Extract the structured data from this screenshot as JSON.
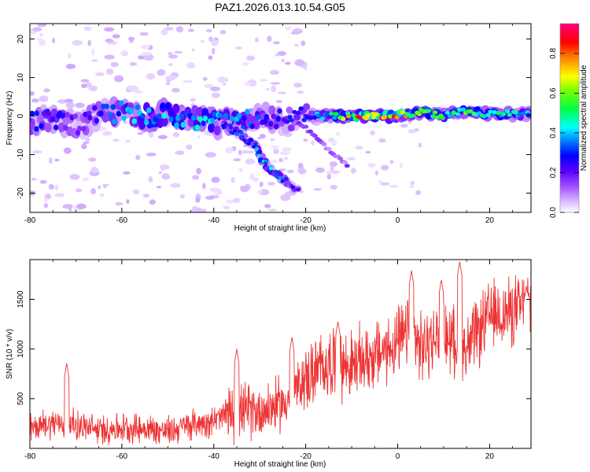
{
  "title": "PAZ1.2026.013.10.54.G05",
  "chart_data": [
    {
      "type": "heatmap",
      "xlabel": "Height of straight line (km)",
      "ylabel": "Frequency (Hz)",
      "xlim": [
        -80,
        29
      ],
      "ylim": [
        -25,
        24
      ],
      "xticks": [
        -80,
        -60,
        -40,
        -20,
        0,
        20
      ],
      "yticks": [
        -20,
        -10,
        0,
        10,
        20
      ],
      "colorbar": {
        "label": "Normalized spectral amplitude",
        "range": [
          0,
          0.95
        ],
        "ticks": [
          0.0,
          0.2,
          0.4,
          0.6,
          0.8
        ],
        "colormap": [
          "#ffffff",
          "#d9b8ff",
          "#9d4dff",
          "#6000ff",
          "#0000ff",
          "#00ffff",
          "#00ff00",
          "#ffff00",
          "#ff8000",
          "#ff0000",
          "#ff0080"
        ]
      },
      "ridge": [
        {
          "x": -80,
          "f": -1.5,
          "a": 0.25
        },
        {
          "x": -75,
          "f": -1.0,
          "a": 0.3
        },
        {
          "x": -70,
          "f": -2.5,
          "a": 0.2
        },
        {
          "x": -65,
          "f": 0.5,
          "a": 0.25
        },
        {
          "x": -60,
          "f": 1.0,
          "a": 0.4
        },
        {
          "x": -55,
          "f": 0.0,
          "a": 0.42
        },
        {
          "x": -50,
          "f": 0.5,
          "a": 0.4
        },
        {
          "x": -45,
          "f": -0.5,
          "a": 0.4
        },
        {
          "x": -40,
          "f": -2.0,
          "a": 0.42
        },
        {
          "x": -35,
          "f": -1.5,
          "a": 0.4
        },
        {
          "x": -30,
          "f": 0.0,
          "a": 0.3
        },
        {
          "x": -25,
          "f": -1.0,
          "a": 0.25
        },
        {
          "x": -20,
          "f": 0.0,
          "a": 0.3
        },
        {
          "x": -15,
          "f": 0.0,
          "a": 0.45
        },
        {
          "x": -10,
          "f": 0.0,
          "a": 0.7
        },
        {
          "x": -5,
          "f": 0.0,
          "a": 0.92
        },
        {
          "x": 0,
          "f": 0.2,
          "a": 0.75
        },
        {
          "x": 5,
          "f": 1.0,
          "a": 0.55
        },
        {
          "x": 10,
          "f": 0.0,
          "a": 0.5
        },
        {
          "x": 15,
          "f": 1.5,
          "a": 0.55
        },
        {
          "x": 20,
          "f": 0.5,
          "a": 0.5
        },
        {
          "x": 25,
          "f": 0.5,
          "a": 0.45
        },
        {
          "x": 29,
          "f": 0.5,
          "a": 0.4
        }
      ],
      "branch": [
        {
          "x": -38,
          "f": -2.0,
          "a": 0.3
        },
        {
          "x": -34,
          "f": -5.0,
          "a": 0.3
        },
        {
          "x": -31,
          "f": -8.0,
          "a": 0.35
        },
        {
          "x": -29,
          "f": -12.0,
          "a": 0.45
        },
        {
          "x": -27,
          "f": -14.5,
          "a": 0.35
        },
        {
          "x": -24,
          "f": -17.0,
          "a": 0.28
        },
        {
          "x": -22,
          "f": -19.5,
          "a": 0.22
        }
      ]
    },
    {
      "type": "line",
      "xlabel": "Height of straight line (km)",
      "ylabel": "SNR (10 * v/v)",
      "xlim": [
        -80,
        29
      ],
      "ylim": [
        0,
        1900
      ],
      "xticks": [
        -80,
        -60,
        -40,
        -20,
        0,
        20
      ],
      "yticks": [
        500,
        1000,
        1500
      ],
      "series": [
        {
          "name": "SNR",
          "color": "#ee3333",
          "trend": [
            {
              "x": -80,
              "y": 200
            },
            {
              "x": -75,
              "y": 260
            },
            {
              "x": -70,
              "y": 240
            },
            {
              "x": -65,
              "y": 180
            },
            {
              "x": -60,
              "y": 210
            },
            {
              "x": -55,
              "y": 200
            },
            {
              "x": -50,
              "y": 170
            },
            {
              "x": -45,
              "y": 240
            },
            {
              "x": -40,
              "y": 280
            },
            {
              "x": -35,
              "y": 370
            },
            {
              "x": -30,
              "y": 380
            },
            {
              "x": -25,
              "y": 450
            },
            {
              "x": -20,
              "y": 700
            },
            {
              "x": -15,
              "y": 860
            },
            {
              "x": -10,
              "y": 830
            },
            {
              "x": -5,
              "y": 940
            },
            {
              "x": 0,
              "y": 1050
            },
            {
              "x": 3,
              "y": 1200
            },
            {
              "x": 5,
              "y": 1000
            },
            {
              "x": 10,
              "y": 1150
            },
            {
              "x": 15,
              "y": 1000
            },
            {
              "x": 20,
              "y": 1330
            },
            {
              "x": 25,
              "y": 1380
            },
            {
              "x": 29,
              "y": 1450
            }
          ],
          "peaks": [
            {
              "x": -72,
              "y": 860
            },
            {
              "x": -35,
              "y": 1000
            },
            {
              "x": -23,
              "y": 1120
            },
            {
              "x": -13,
              "y": 1280
            },
            {
              "x": 3,
              "y": 1790
            },
            {
              "x": 9.5,
              "y": 1700
            },
            {
              "x": 13.5,
              "y": 1880
            },
            {
              "x": 28,
              "y": 1630
            }
          ]
        }
      ]
    }
  ]
}
